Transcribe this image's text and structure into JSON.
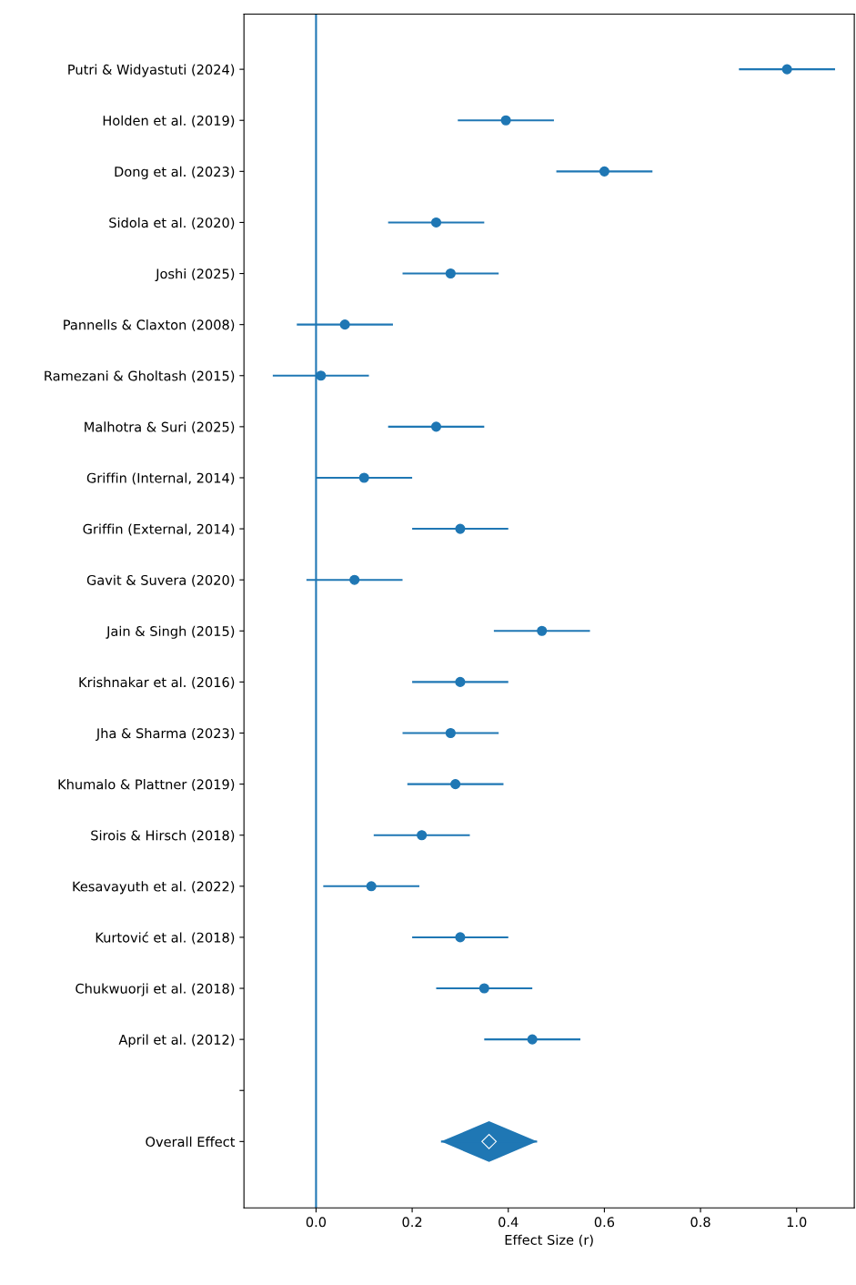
{
  "chart_data": {
    "type": "scatter",
    "orientation": "horizontal",
    "xlabel": "Effect Size (r)",
    "categories": [
      "Putri & Widyastuti (2024)",
      "Holden et al. (2019)",
      "Dong et al. (2023)",
      "Sidola et al. (2020)",
      "Joshi (2025)",
      "Pannells & Claxton (2008)",
      "Ramezani & Gholtash (2015)",
      "Malhotra & Suri (2025)",
      "Griffin (Internal, 2014)",
      "Griffin (External, 2014)",
      "Gavit & Suvera (2020)",
      "Jain & Singh (2015)",
      "Krishnakar et al. (2016)",
      "Jha & Sharma (2023)",
      "Khumalo & Plattner (2019)",
      "Sirois & Hirsch (2018)",
      "Kesavayuth et al. (2022)",
      "Kurtović et al. (2018)",
      "Chukwuorji et al. (2018)",
      "April et al. (2012)",
      null,
      "Overall Effect"
    ],
    "series": [
      {
        "marker": "circle",
        "color": "#1f77b4",
        "values": [
          0.98,
          0.395,
          0.6,
          0.25,
          0.28,
          0.06,
          0.01,
          0.25,
          0.1,
          0.3,
          0.08,
          0.47,
          0.3,
          0.28,
          0.29,
          0.22,
          0.115,
          0.3,
          0.35,
          0.45,
          null,
          null
        ],
        "errors": [
          0.1,
          0.1,
          0.1,
          0.1,
          0.1,
          0.1,
          0.1,
          0.1,
          0.1,
          0.1,
          0.1,
          0.1,
          0.1,
          0.1,
          0.1,
          0.1,
          0.1,
          0.1,
          0.1,
          0.1,
          null,
          null
        ]
      },
      {
        "marker": "diamond",
        "color": "#1f77b4",
        "values": [
          null,
          null,
          null,
          null,
          null,
          null,
          null,
          null,
          null,
          null,
          null,
          null,
          null,
          null,
          null,
          null,
          null,
          null,
          null,
          null,
          null,
          0.36
        ],
        "errors": [
          null,
          null,
          null,
          null,
          null,
          null,
          null,
          null,
          null,
          null,
          null,
          null,
          null,
          null,
          null,
          null,
          null,
          null,
          null,
          null,
          null,
          [
            0.26,
            0.46
          ]
        ]
      }
    ],
    "ref_lines": [
      {
        "axis": "x",
        "value": 0,
        "color": "#1f77b4",
        "line_style": "solid"
      }
    ],
    "xlim": [
      -0.15,
      1.12
    ],
    "xticks": [
      {
        "value": 0,
        "label": "0.0"
      },
      {
        "value": 0.2,
        "label": "0.2"
      },
      {
        "value": 0.4,
        "label": "0.4"
      },
      {
        "value": 0.6,
        "label": "0.6"
      },
      {
        "value": 0.8,
        "label": "0.8"
      },
      {
        "value": 1.0,
        "label": "1.0"
      }
    ],
    "grid": false
  }
}
